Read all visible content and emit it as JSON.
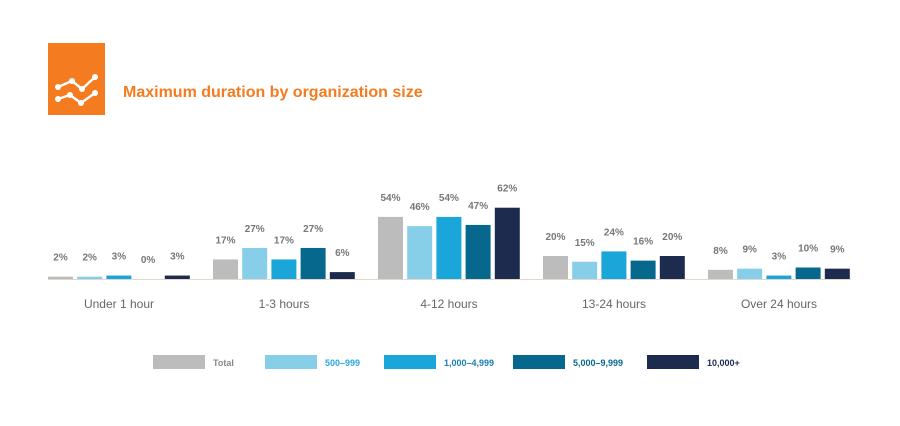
{
  "header": {
    "title": "Maximum duration by organization size",
    "icon": "line-chart-icon",
    "accent_color": "#f47b20"
  },
  "chart_data": {
    "type": "bar",
    "title": "Maximum duration by organization size",
    "categories": [
      "Under 1 hour",
      "1-3 hours",
      "4-12 hours",
      "13-24 hours",
      "Over 24 hours"
    ],
    "series": [
      {
        "name": "Total",
        "color": "#bcbcbc",
        "label_color": "#888888",
        "values": [
          2,
          17,
          54,
          20,
          8
        ]
      },
      {
        "name": "500–999",
        "color": "#87cfe9",
        "label_color": "#29a8dd",
        "values": [
          2,
          27,
          46,
          15,
          9
        ]
      },
      {
        "name": "1,000–4,999",
        "color": "#1aa6d9",
        "label_color": "#1a7fb0",
        "values": [
          3,
          17,
          54,
          24,
          3
        ]
      },
      {
        "name": "5,000–9,999",
        "color": "#07688e",
        "label_color": "#07688e",
        "values": [
          0,
          27,
          47,
          16,
          10
        ]
      },
      {
        "name": "10,000+",
        "color": "#1d2b4f",
        "label_color": "#1d2b4f",
        "values": [
          3,
          6,
          62,
          20,
          9
        ]
      }
    ],
    "value_suffix": "%",
    "ylim": [
      0,
      62
    ],
    "grid": false,
    "legend_position": "bottom"
  }
}
